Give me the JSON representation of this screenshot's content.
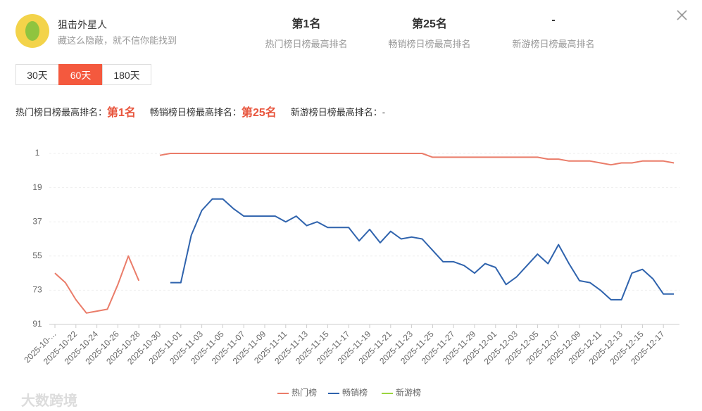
{
  "header": {
    "title": "狙击外星人",
    "subtitle": "藏这么隐蔽，就不信你能找到"
  },
  "stats": [
    {
      "value": "第1名",
      "label": "热门榜日榜最高排名"
    },
    {
      "value": "第25名",
      "label": "畅销榜日榜最高排名"
    },
    {
      "value": "-",
      "label": "新游榜日榜最高排名"
    }
  ],
  "tabs": [
    "30天",
    "60天",
    "180天"
  ],
  "active_tab": 1,
  "summary": [
    {
      "label": "热门榜日榜最高排名：",
      "value": "第1名"
    },
    {
      "label": "畅销榜日榜最高排名：",
      "value": "第25名"
    },
    {
      "label": "新游榜日榜最高排名：",
      "value": "-"
    }
  ],
  "watermark": "大数跨境",
  "chart_data": {
    "type": "line",
    "categories": [
      "2025-10-...",
      null,
      "2025-10-22",
      null,
      "2025-10-24",
      null,
      "2025-10-26",
      null,
      "2025-10-28",
      null,
      "2025-10-30",
      null,
      "2025-11-01",
      null,
      "2025-11-03",
      null,
      "2025-11-05",
      null,
      "2025-11-07",
      null,
      "2025-11-09",
      null,
      "2025-11-11",
      null,
      "2025-11-13",
      null,
      "2025-11-15",
      null,
      "2025-11-17",
      null,
      "2025-11-19",
      null,
      "2025-11-21",
      null,
      "2025-11-23",
      null,
      "2025-11-25",
      null,
      "2025-11-27",
      null,
      "2025-11-29",
      null,
      "2025-12-01",
      null,
      "2025-12-03",
      null,
      "2025-12-05",
      null,
      "2025-12-07",
      null,
      "2025-12-09",
      null,
      "2025-12-11",
      null,
      "2025-12-13",
      null,
      "2025-12-15",
      null,
      "2025-12-17",
      null
    ],
    "series": [
      {
        "name": "热门榜",
        "color": "#ea7c69",
        "values": [
          64,
          69,
          78,
          85,
          84,
          83,
          70,
          55,
          68,
          null,
          2,
          1,
          1,
          1,
          1,
          1,
          1,
          1,
          1,
          1,
          1,
          1,
          1,
          1,
          1,
          1,
          1,
          1,
          1,
          1,
          1,
          1,
          1,
          1,
          1,
          1,
          3,
          3,
          3,
          3,
          3,
          3,
          3,
          3,
          3,
          3,
          3,
          4,
          4,
          5,
          5,
          5,
          6,
          7,
          6,
          6,
          5,
          5,
          5,
          6
        ]
      },
      {
        "name": "畅销榜",
        "color": "#2f63ad",
        "values": [
          null,
          null,
          null,
          null,
          null,
          null,
          null,
          null,
          null,
          null,
          null,
          69,
          69,
          44,
          31,
          25,
          25,
          30,
          34,
          34,
          34,
          34,
          37,
          34,
          39,
          37,
          40,
          40,
          40,
          47,
          41,
          48,
          42,
          46,
          45,
          46,
          52,
          58,
          58,
          60,
          64,
          59,
          61,
          70,
          66,
          60,
          54,
          59,
          49,
          59,
          68,
          69,
          73,
          78,
          78,
          64,
          62,
          67,
          75,
          75
        ]
      },
      {
        "name": "新游榜",
        "color": "#9bd53f",
        "values": [
          null,
          null,
          null,
          null,
          null,
          null,
          null,
          null,
          null,
          null,
          null,
          null,
          null,
          null,
          null,
          null,
          null,
          null,
          null,
          null,
          null,
          null,
          null,
          null,
          null,
          null,
          null,
          null,
          null,
          null,
          null,
          null,
          null,
          null,
          null,
          null,
          null,
          null,
          null,
          null,
          null,
          null,
          null,
          null,
          null,
          null,
          null,
          null,
          null,
          null,
          null,
          null,
          null,
          null,
          null,
          null,
          null,
          null,
          null,
          null
        ]
      }
    ],
    "ylim": [
      1,
      91
    ],
    "yticks": [
      1,
      19,
      37,
      55,
      73,
      91
    ],
    "y_inverted": true,
    "grid": true,
    "legend": "bottom"
  }
}
